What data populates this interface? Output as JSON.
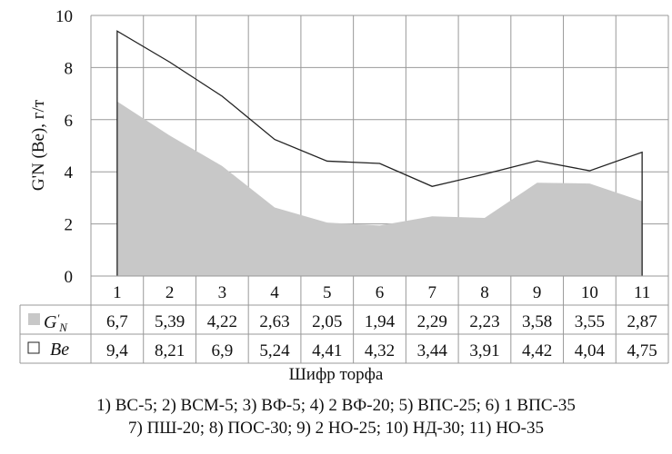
{
  "chart_data": {
    "type": "area+line",
    "categories": [
      "1",
      "2",
      "3",
      "4",
      "5",
      "6",
      "7",
      "8",
      "9",
      "10",
      "11"
    ],
    "series": [
      {
        "name": "G'N",
        "style": "area",
        "color": "#c8c8c8",
        "values": [
          6.7,
          5.39,
          4.22,
          2.63,
          2.05,
          1.94,
          2.29,
          2.23,
          3.58,
          3.55,
          2.87
        ],
        "labels": [
          "6,7",
          "5,39",
          "4,22",
          "2,63",
          "2,05",
          "1,94",
          "2,29",
          "2,23",
          "3,58",
          "3,55",
          "2,87"
        ]
      },
      {
        "name": "Be",
        "style": "line",
        "color": "#222222",
        "values": [
          9.4,
          8.21,
          6.9,
          5.24,
          4.41,
          4.32,
          3.44,
          3.91,
          4.42,
          4.04,
          4.75
        ],
        "labels": [
          "9,4",
          "8,21",
          "6,9",
          "5,24",
          "4,41",
          "4,32",
          "3,44",
          "3,91",
          "4,42",
          "4,04",
          "4,75"
        ]
      }
    ],
    "ylabel": "G'N (Be), г/т",
    "yticks": [
      "0",
      "2",
      "4",
      "6",
      "8",
      "10"
    ],
    "ylim": [
      0,
      10
    ],
    "xlabel": "Шифр торфа",
    "legend_lines": [
      "1) ВС-5; 2) ВСМ-5; 3) ВФ-5; 4) 2 ВФ-20; 5) ВПС-25; 6) 1 ВПС-35",
      "7) ПШ-20; 8) ПОС-30; 9) 2 НО-25; 10) НД-30; 11) НО-35"
    ],
    "grid": true
  }
}
